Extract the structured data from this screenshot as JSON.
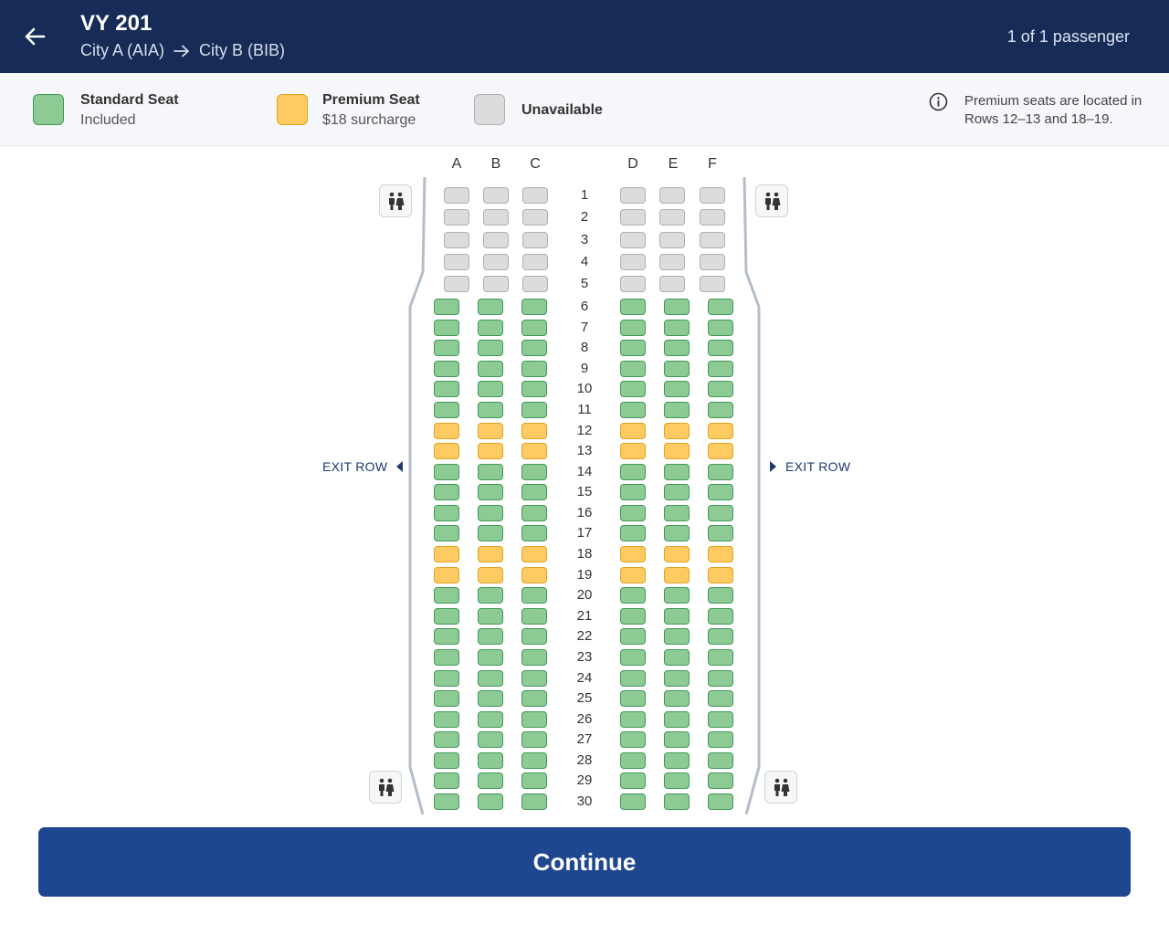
{
  "header": {
    "flight_number": "VY 201",
    "origin": "City A (AIA)",
    "destination": "City B (BIB)",
    "passenger_count": "1 of 1 passenger"
  },
  "legend": {
    "standard": {
      "title": "Standard Seat",
      "subtitle": "Included",
      "color": "#8ecb94"
    },
    "premium": {
      "title": "Premium Seat",
      "subtitle": "$18 surcharge",
      "color": "#fdcb62"
    },
    "unavailable": {
      "title": "Unavailable",
      "color": "#dcdcdc"
    },
    "note": "Premium seats are located in Rows 12–13 and 18–19."
  },
  "seat_map": {
    "columns_left": [
      "A",
      "B",
      "C"
    ],
    "columns_right": [
      "D",
      "E",
      "F"
    ],
    "rows": [
      "1",
      "2",
      "3",
      "4",
      "5",
      "6",
      "7",
      "8",
      "9",
      "10",
      "11",
      "12",
      "13",
      "14",
      "15",
      "16",
      "17",
      "18",
      "19",
      "20",
      "21",
      "22",
      "23",
      "24",
      "25",
      "26",
      "27",
      "28",
      "29",
      "30"
    ],
    "unavailable_rows": [
      "1",
      "2",
      "3",
      "4",
      "5"
    ],
    "premium_rows": [
      "12",
      "13",
      "18",
      "19"
    ],
    "exit_left": "EXIT ROW",
    "exit_right": "EXIT ROW"
  },
  "actions": {
    "continue_label": "Continue"
  },
  "colors": {
    "header_bg": "#162c56",
    "button_bg": "#1f478f",
    "accent_text": "#1e3a70"
  }
}
